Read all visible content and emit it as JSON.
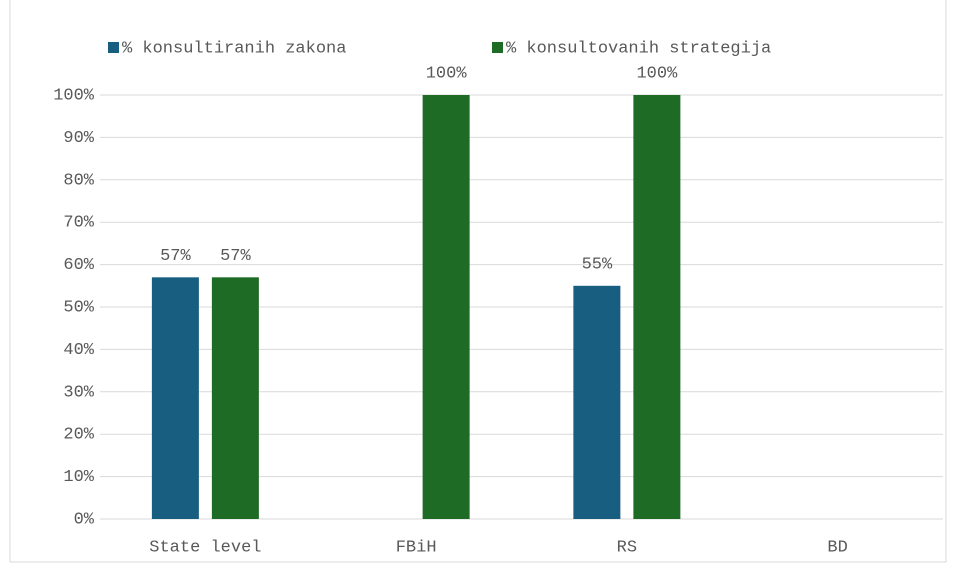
{
  "chart_data": {
    "type": "bar",
    "categories": [
      "State level",
      "FBiH",
      "RS",
      "BD"
    ],
    "series": [
      {
        "name": "% konsultiranih zakona",
        "color": "#175e80",
        "values": [
          57,
          null,
          55,
          null
        ],
        "value_labels": [
          "57%",
          null,
          "55%",
          null
        ]
      },
      {
        "name": "% konsultovanih strategija",
        "color": "#1e6b25",
        "values": [
          57,
          100,
          100,
          null
        ],
        "value_labels": [
          "57%",
          "100%",
          "100%",
          null
        ]
      }
    ],
    "ylim": [
      0,
      100
    ],
    "yticks": [
      {
        "value": 0,
        "label": "0%"
      },
      {
        "value": 10,
        "label": "10%"
      },
      {
        "value": 20,
        "label": "20%"
      },
      {
        "value": 30,
        "label": "30%"
      },
      {
        "value": 40,
        "label": "40%"
      },
      {
        "value": 50,
        "label": "50%"
      },
      {
        "value": 60,
        "label": "60%"
      },
      {
        "value": 70,
        "label": "70%"
      },
      {
        "value": 80,
        "label": "80%"
      },
      {
        "value": 90,
        "label": "90%"
      },
      {
        "value": 100,
        "label": "100%"
      }
    ],
    "grid": true,
    "legend": "top"
  }
}
